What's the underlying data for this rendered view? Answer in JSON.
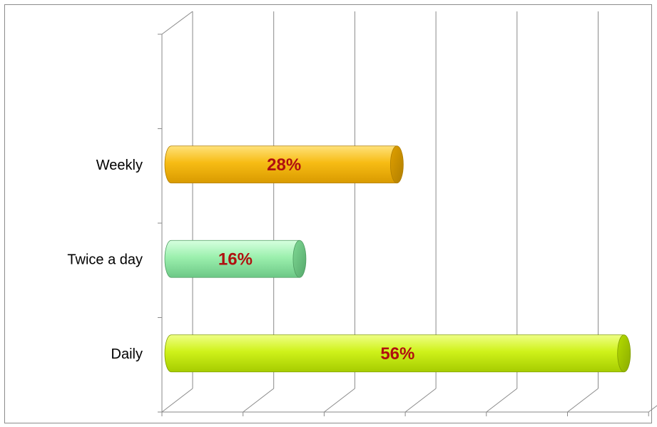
{
  "chart_data": {
    "type": "bar",
    "orientation": "horizontal",
    "categories": [
      "Weekly",
      "Twice a day",
      "Daily"
    ],
    "values": [
      28,
      16,
      56
    ],
    "data_labels": [
      "28%",
      "16%",
      "56%"
    ],
    "colors": [
      "#f5b400",
      "#8ee8a0",
      "#c8f000"
    ],
    "xlim": [
      0,
      60
    ],
    "grid": true,
    "legend": "none",
    "three_d": true
  }
}
